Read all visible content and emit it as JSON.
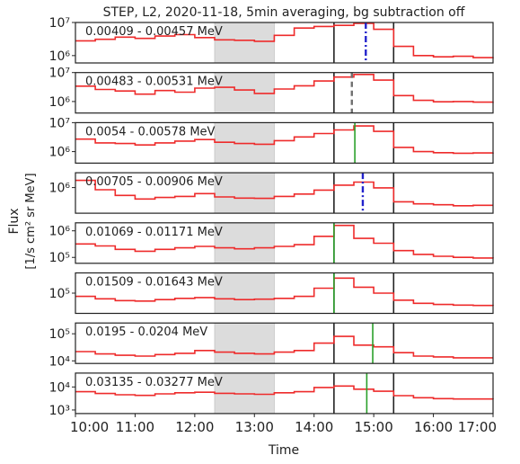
{
  "chart_data": {
    "type": "line",
    "title": "STEP, L2, 2020-11-18, 5min averaging, bg subtraction off",
    "xlabel": "Time",
    "ylabel": "Flux",
    "ylabel_units": "[1/s cm² sr MeV]",
    "x_ticks": [
      "10:00",
      "11:00",
      "12:00",
      "13:00",
      "14:00",
      "15:00",
      "16:00",
      "17:00"
    ],
    "x_range": [
      "10:00",
      "17:00"
    ],
    "y_scale": "log",
    "grid": false,
    "colors": {
      "trace": "#ee2b2b",
      "shade": "#dcdcdc",
      "event": "#222222"
    },
    "shaded_interval": [
      "12:20",
      "13:20"
    ],
    "event_lines": [
      "14:20",
      "15:20"
    ],
    "panels": [
      {
        "label": "0.00409 - 0.00457 MeV",
        "ylim": [
          600000,
          10000000
        ],
        "y_ticks": [
          {
            "text": "10⁷",
            "value": 10000000
          },
          {
            "text": "10⁶",
            "value": 1000000
          }
        ],
        "marker": {
          "time": "14:52",
          "style": "dashdot",
          "color": "#2222cc"
        },
        "x": [
          "10:00",
          "10:20",
          "10:40",
          "11:00",
          "11:20",
          "11:40",
          "12:00",
          "12:20",
          "12:40",
          "13:00",
          "13:20",
          "13:40",
          "14:00",
          "14:20",
          "14:40",
          "15:00",
          "15:20",
          "15:40",
          "16:00",
          "16:20",
          "16:40",
          "17:00"
        ],
        "values": [
          2800000,
          3100000,
          3600000,
          3300000,
          3900000,
          4300000,
          3500000,
          3000000,
          2900000,
          2700000,
          4100000,
          6800000,
          7600000,
          8200000,
          9400000,
          6200000,
          1900000,
          1000000,
          920000,
          950000,
          870000,
          900000
        ]
      },
      {
        "label": "0.00483 - 0.00531 MeV",
        "ylim": [
          400000,
          10000000
        ],
        "y_ticks": [
          {
            "text": "10⁷",
            "value": 10000000
          },
          {
            "text": "10⁶",
            "value": 1000000
          }
        ],
        "marker": {
          "time": "14:38",
          "style": "dashed",
          "color": "#707070"
        },
        "x": [
          "10:00",
          "10:20",
          "10:40",
          "11:00",
          "11:20",
          "11:40",
          "12:00",
          "12:20",
          "12:40",
          "13:00",
          "13:20",
          "13:40",
          "14:00",
          "14:20",
          "14:40",
          "15:00",
          "15:20",
          "15:40",
          "16:00",
          "16:20",
          "16:40",
          "17:00"
        ],
        "values": [
          3400000,
          2600000,
          2300000,
          1800000,
          2400000,
          2100000,
          2900000,
          3100000,
          2500000,
          1900000,
          2700000,
          3500000,
          5100000,
          7000000,
          8600000,
          5500000,
          1600000,
          1100000,
          980000,
          1000000,
          950000,
          980000
        ]
      },
      {
        "label": "0.0054 - 0.00578 MeV",
        "ylim": [
          400000,
          10000000
        ],
        "y_ticks": [
          {
            "text": "10⁷",
            "value": 10000000
          },
          {
            "text": "10⁶",
            "value": 1000000
          }
        ],
        "marker": {
          "time": "14:41",
          "style": "solid",
          "color": "#2aa02a"
        },
        "x": [
          "10:00",
          "10:20",
          "10:40",
          "11:00",
          "11:20",
          "11:40",
          "12:00",
          "12:20",
          "12:40",
          "13:00",
          "13:20",
          "13:40",
          "14:00",
          "14:20",
          "14:40",
          "15:00",
          "15:20",
          "15:40",
          "16:00",
          "16:20",
          "16:40",
          "17:00"
        ],
        "values": [
          2700000,
          2000000,
          1900000,
          1700000,
          2000000,
          2300000,
          2600000,
          2100000,
          1900000,
          1800000,
          2400000,
          3200000,
          4200000,
          5600000,
          7700000,
          5000000,
          1400000,
          1000000,
          920000,
          880000,
          900000,
          930000
        ]
      },
      {
        "label": "0.00705 - 0.00906 MeV",
        "ylim": [
          150000,
          3000000
        ],
        "y_ticks": [
          {
            "text": "10⁶",
            "value": 1000000
          }
        ],
        "marker": {
          "time": "14:49",
          "style": "dashdot",
          "color": "#2222cc"
        },
        "x": [
          "10:00",
          "10:20",
          "10:40",
          "11:00",
          "11:20",
          "11:40",
          "12:00",
          "12:20",
          "12:40",
          "13:00",
          "13:20",
          "13:40",
          "14:00",
          "14:20",
          "14:40",
          "15:00",
          "15:20",
          "15:40",
          "16:00",
          "16:20",
          "16:40",
          "17:00"
        ],
        "values": [
          1700000,
          850000,
          560000,
          430000,
          480000,
          520000,
          640000,
          500000,
          460000,
          450000,
          520000,
          620000,
          830000,
          1200000,
          1500000,
          980000,
          350000,
          300000,
          280000,
          260000,
          270000,
          270000
        ]
      },
      {
        "label": "0.01069 - 0.01171 MeV",
        "ylim": [
          60000,
          2000000
        ],
        "y_ticks": [
          {
            "text": "10⁶",
            "value": 1000000
          },
          {
            "text": "10⁵",
            "value": 100000
          }
        ],
        "marker": {
          "time": "14:20",
          "style": "solid",
          "color": "#2aa02a"
        },
        "x": [
          "10:00",
          "10:20",
          "10:40",
          "11:00",
          "11:20",
          "11:40",
          "12:00",
          "12:20",
          "12:40",
          "13:00",
          "13:20",
          "13:40",
          "14:00",
          "14:20",
          "14:40",
          "15:00",
          "15:20",
          "15:40",
          "16:00",
          "16:20",
          "16:40",
          "17:00"
        ],
        "values": [
          320000,
          270000,
          200000,
          170000,
          200000,
          230000,
          260000,
          230000,
          210000,
          230000,
          260000,
          300000,
          620000,
          1600000,
          520000,
          340000,
          180000,
          130000,
          110000,
          100000,
          95000,
          92000
        ]
      },
      {
        "label": "0.01509 - 0.01643 MeV",
        "ylim": [
          25000,
          400000
        ],
        "y_ticks": [
          {
            "text": "10⁵",
            "value": 100000
          }
        ],
        "marker": {
          "time": "14:20",
          "style": "solid",
          "color": "#2aa02a"
        },
        "x": [
          "10:00",
          "10:20",
          "10:40",
          "11:00",
          "11:20",
          "11:40",
          "12:00",
          "12:20",
          "12:40",
          "13:00",
          "13:20",
          "13:40",
          "14:00",
          "14:20",
          "14:40",
          "15:00",
          "15:20",
          "15:40",
          "16:00",
          "16:20",
          "16:40",
          "17:00"
        ],
        "values": [
          80000,
          68000,
          60000,
          58000,
          64000,
          70000,
          74000,
          68000,
          64000,
          66000,
          70000,
          80000,
          140000,
          280000,
          150000,
          100000,
          62000,
          50000,
          46000,
          44000,
          43000,
          42000
        ]
      },
      {
        "label": "0.0195 - 0.0204 MeV",
        "ylim": [
          8000,
          250000
        ],
        "y_ticks": [
          {
            "text": "10⁵",
            "value": 100000
          },
          {
            "text": "10⁴",
            "value": 10000
          }
        ],
        "marker": {
          "time": "14:59",
          "style": "solid",
          "color": "#2aa02a"
        },
        "x": [
          "10:00",
          "10:20",
          "10:40",
          "11:00",
          "11:20",
          "11:40",
          "12:00",
          "12:20",
          "12:40",
          "13:00",
          "13:20",
          "13:40",
          "14:00",
          "14:20",
          "14:40",
          "15:00",
          "15:20",
          "15:40",
          "16:00",
          "16:20",
          "16:40",
          "17:00"
        ],
        "values": [
          22000,
          18000,
          16000,
          15000,
          17000,
          19000,
          24000,
          21000,
          19000,
          18000,
          21000,
          24000,
          45000,
          80000,
          38000,
          33000,
          20000,
          15000,
          14000,
          13000,
          13000,
          13000
        ]
      },
      {
        "label": "0.03135 - 0.03277 MeV",
        "ylim": [
          700,
          40000
        ],
        "y_ticks": [
          {
            "text": "10⁴",
            "value": 10000
          },
          {
            "text": "10³",
            "value": 1000
          }
        ],
        "marker": {
          "time": "14:53",
          "style": "solid",
          "color": "#2aa02a"
        },
        "x": [
          "10:00",
          "10:20",
          "10:40",
          "11:00",
          "11:20",
          "11:40",
          "12:00",
          "12:20",
          "12:40",
          "13:00",
          "13:20",
          "13:40",
          "14:00",
          "14:20",
          "14:40",
          "15:00",
          "15:20",
          "15:40",
          "16:00",
          "16:20",
          "16:40",
          "17:00"
        ],
        "values": [
          6200,
          5200,
          4600,
          4300,
          5000,
          5600,
          5900,
          5300,
          5000,
          4800,
          5600,
          6200,
          9500,
          11000,
          8000,
          6500,
          4200,
          3400,
          3100,
          3000,
          3000,
          2900
        ]
      }
    ]
  }
}
